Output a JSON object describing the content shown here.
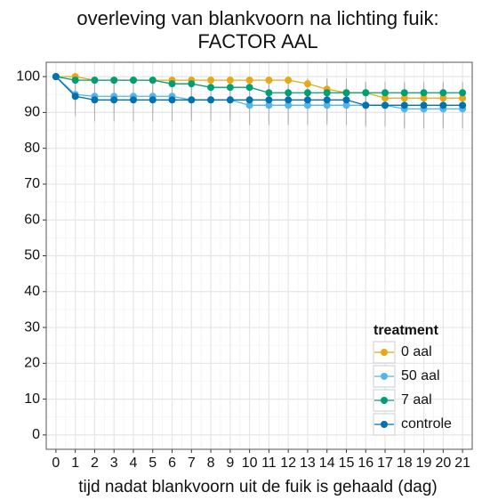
{
  "chart_data": {
    "type": "line",
    "title": [
      "overleving van blankvoorn na lichting fuik:",
      "FACTOR AAL"
    ],
    "x_label": "tijd nadat blankvoorn uit de fuik is gehaald (dag)",
    "x": [
      0,
      1,
      2,
      3,
      4,
      5,
      6,
      7,
      8,
      9,
      10,
      11,
      12,
      13,
      14,
      15,
      16,
      17,
      18,
      19,
      20,
      21
    ],
    "xlim": [
      -0.5,
      21.5
    ],
    "xticks": [
      0,
      1,
      2,
      3,
      4,
      5,
      6,
      7,
      8,
      9,
      10,
      11,
      12,
      13,
      14,
      15,
      16,
      17,
      18,
      19,
      20,
      21
    ],
    "ylim": [
      -4,
      104
    ],
    "yticks": [
      0,
      10,
      20,
      30,
      40,
      50,
      60,
      70,
      80,
      90,
      100
    ],
    "grid": true,
    "legend_title": "treatment",
    "legend_position": "bottom-right",
    "series": [
      {
        "name": "0 aal",
        "color": "#E6A817",
        "values": [
          100,
          100,
          99,
          99,
          99,
          99,
          99,
          99,
          99,
          99,
          99,
          99,
          99,
          98,
          96.5,
          95.5,
          95.5,
          94,
          94,
          94,
          94,
          94
        ],
        "errors": [
          0,
          0.5,
          1,
          1,
          1,
          1,
          1,
          1,
          1,
          1,
          1,
          1,
          1,
          1.5,
          2.5,
          3,
          3,
          3,
          3,
          3,
          3,
          3
        ]
      },
      {
        "name": "50 aal",
        "color": "#56B4E9",
        "values": [
          100,
          95,
          94.5,
          94.5,
          94.5,
          94.5,
          94.5,
          93.5,
          93.5,
          93.5,
          92,
          92,
          92,
          92,
          92,
          92,
          92,
          92,
          91,
          91,
          91,
          91
        ],
        "errors": [
          0,
          4,
          4.5,
          4.5,
          4.5,
          4.5,
          4.5,
          5,
          5,
          5,
          5.5,
          5.5,
          5.5,
          5.5,
          5.5,
          5.5,
          5.5,
          5.5,
          5.5,
          5.5,
          5.5,
          5.5
        ]
      },
      {
        "name": "7 aal",
        "color": "#009E73",
        "values": [
          100,
          99,
          99,
          99,
          99,
          99,
          98,
          98,
          97,
          97,
          97,
          95.5,
          95.5,
          95.5,
          95.5,
          95.5,
          95.5,
          95.5,
          95.5,
          95.5,
          95.5,
          95.5
        ],
        "errors": [
          0,
          1,
          1,
          1,
          1,
          1,
          1.5,
          1.5,
          2,
          2,
          2,
          3,
          3,
          3,
          3,
          3,
          3,
          3,
          3,
          3,
          3,
          3
        ]
      },
      {
        "name": "controle",
        "color": "#0072B2",
        "values": [
          100,
          94.5,
          93.5,
          93.5,
          93.5,
          93.5,
          93.5,
          93.5,
          93.5,
          93.5,
          93.5,
          93.5,
          93.5,
          93.5,
          93.5,
          93.5,
          92,
          92,
          92,
          92,
          92,
          92
        ],
        "errors": [
          0,
          5.5,
          6,
          6,
          6,
          6,
          6,
          6,
          6,
          6,
          6,
          6,
          6,
          6,
          6,
          6,
          6,
          6,
          6,
          6,
          6,
          6
        ]
      }
    ]
  }
}
